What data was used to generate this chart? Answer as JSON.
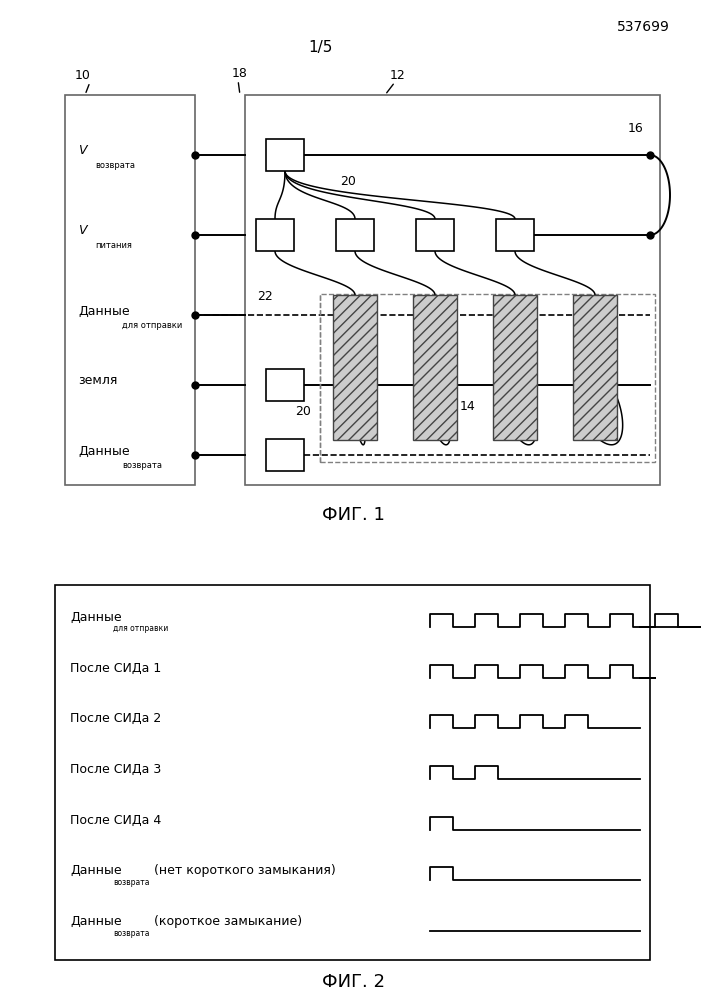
{
  "page_number": "537699",
  "fig_label": "1/5",
  "fig1_caption": "ФИГ. 1",
  "fig2_caption": "ФИГ. 2",
  "background_color": "#ffffff",
  "fig2_rows": [
    {
      "label_main": "Данные",
      "label_sub": "для отправки",
      "extra": "",
      "pulses": 6
    },
    {
      "label_main": "После СИДа 1",
      "label_sub": "",
      "extra": "",
      "pulses": 5
    },
    {
      "label_main": "После СИДа 2",
      "label_sub": "",
      "extra": "",
      "pulses": 4
    },
    {
      "label_main": "После СИДа 3",
      "label_sub": "",
      "extra": "",
      "pulses": 2
    },
    {
      "label_main": "После СИДа 4",
      "label_sub": "",
      "extra": "",
      "pulses": 1
    },
    {
      "label_main": "Данные",
      "label_sub": "возврата",
      "extra": "(нет короткого замыкания)",
      "pulses": 1
    },
    {
      "label_main": "Данные",
      "label_sub": "возврата",
      "extra": "(короткое замыкание)",
      "pulses": 0
    }
  ]
}
